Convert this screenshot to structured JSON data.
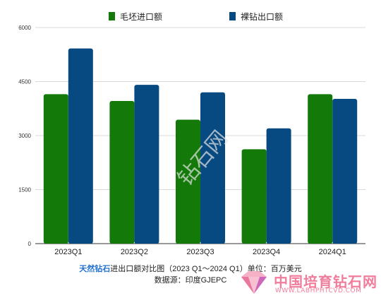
{
  "chart_data": {
    "type": "bar",
    "categories": [
      "2023Q1",
      "2023Q2",
      "2023Q3",
      "2023Q4",
      "2024Q1"
    ],
    "series": [
      {
        "name": "毛坯进口额",
        "color": "#137a0a",
        "values": [
          4150,
          3960,
          3440,
          2620,
          4150
        ]
      },
      {
        "name": "裸钻出口额",
        "color": "#074a82",
        "values": [
          5420,
          4410,
          4200,
          3200,
          4020
        ]
      }
    ],
    "yticks": [
      0,
      1500,
      3000,
      4500,
      6000
    ],
    "ylim": [
      0,
      6000
    ],
    "grid": true,
    "legend": "top-center"
  },
  "caption": {
    "brand": "天然钻石",
    "title": "进出口额对比图（2023 Q1～2024 Q1）单位：百万美元",
    "source": "数据源：印度GJEPC"
  },
  "watermark": {
    "name_cn": "中国培育钻石网",
    "url": "WWW.LABHPHTCVD.COM",
    "logo_icon": "diamond-logo-icon"
  }
}
